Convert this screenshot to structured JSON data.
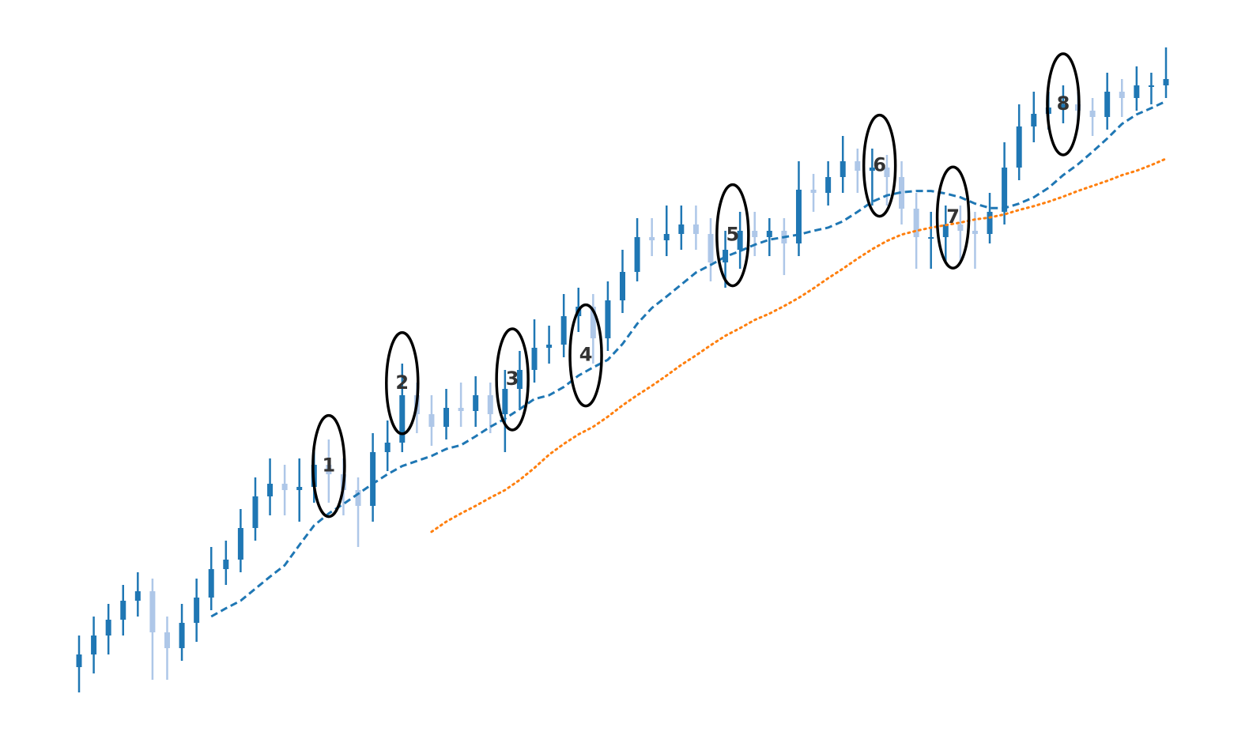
{
  "chart_data": {
    "type": "candlestick",
    "up_color": "#1f77b4",
    "down_color": "#aec7e8",
    "xlim": [
      0,
      74
    ],
    "ylim": [
      0,
      110
    ],
    "x": [
      0,
      1,
      2,
      3,
      4,
      5,
      6,
      7,
      8,
      9,
      10,
      11,
      12,
      13,
      14,
      15,
      16,
      17,
      18,
      19,
      20,
      21,
      22,
      23,
      24,
      25,
      26,
      27,
      28,
      29,
      30,
      31,
      32,
      33,
      34,
      35,
      36,
      37,
      38,
      39,
      40,
      41,
      42,
      43,
      44,
      45,
      46,
      47,
      48,
      49,
      50,
      51,
      52,
      53,
      54,
      55,
      56,
      57,
      58,
      59,
      60,
      61,
      62,
      63,
      64,
      65,
      66,
      67,
      68,
      69,
      70,
      71,
      72,
      73,
      74
    ],
    "open": [
      7,
      9,
      12,
      14.5,
      17.5,
      19,
      12.5,
      10,
      14,
      18,
      22.5,
      24,
      29,
      34,
      36,
      35,
      35.5,
      39,
      37.5,
      35,
      32.5,
      41,
      42.5,
      50,
      47,
      45,
      48,
      47.5,
      50,
      47,
      51,
      54,
      57.5,
      58,
      62.5,
      64,
      59,
      65,
      69.5,
      75,
      74.5,
      75.5,
      77,
      75.5,
      71,
      73,
      76,
      75,
      76,
      74,
      82.5,
      82,
      84.5,
      87,
      85.5,
      86,
      84.5,
      79.5,
      75,
      75,
      77,
      76,
      75.5,
      79,
      86,
      92.5,
      94.5,
      95.5,
      96,
      95,
      94,
      98,
      97,
      99,
      99
    ],
    "high": [
      12,
      15,
      17,
      20,
      22,
      21,
      15,
      17,
      21,
      26,
      27,
      32,
      37,
      40,
      39,
      40,
      42,
      43,
      40,
      37,
      44,
      46,
      55,
      52,
      50,
      51,
      52,
      53,
      52,
      54,
      57,
      62,
      61,
      66,
      67,
      66,
      68,
      73,
      78,
      78,
      80,
      80,
      80,
      78,
      76,
      79,
      79,
      78,
      78,
      87,
      85,
      87,
      91,
      89,
      89,
      88,
      87,
      82,
      79,
      80,
      80,
      79,
      82,
      90,
      96,
      98,
      98,
      99,
      98,
      97,
      101,
      100,
      102,
      101,
      105
    ],
    "low": [
      3,
      6,
      9,
      12,
      15,
      5,
      5,
      8,
      11,
      16,
      20,
      22,
      27,
      31,
      31,
      30,
      33,
      33,
      31,
      26,
      30,
      38,
      41,
      44,
      42,
      43,
      45,
      45,
      44,
      41,
      48,
      52,
      55,
      56,
      60,
      55,
      57,
      63,
      68,
      72,
      72,
      73,
      73,
      68,
      67,
      70,
      72,
      72,
      69,
      72,
      79,
      80,
      82,
      82,
      80,
      80,
      77,
      70,
      70,
      71,
      71,
      70,
      74,
      77,
      84,
      90,
      92,
      93,
      92,
      91,
      92,
      94,
      95,
      96,
      97
    ],
    "close": [
      9,
      12,
      14.5,
      17.5,
      19,
      12.5,
      10,
      14,
      18,
      22.5,
      24,
      29,
      34,
      36,
      35,
      35.5,
      39,
      37.5,
      35,
      32.5,
      41,
      42.5,
      50,
      47,
      45,
      48,
      47.5,
      50,
      47,
      51,
      54,
      57.5,
      58,
      62.5,
      64,
      59,
      65,
      69.5,
      75,
      74.5,
      75.5,
      77,
      75.5,
      71,
      73,
      76,
      75,
      76,
      74,
      82.5,
      82,
      84.5,
      87,
      85.5,
      86,
      84.5,
      79.5,
      75,
      75,
      77,
      76,
      75.5,
      79,
      86,
      92.5,
      94.5,
      95.5,
      96,
      95,
      94,
      98,
      97,
      99,
      99,
      100
    ],
    "lines": [
      {
        "color": "#1f77b4",
        "style": "dashed",
        "values": [
          null,
          null,
          null,
          null,
          null,
          null,
          null,
          null,
          null,
          15,
          16.3,
          17.5,
          19.4,
          21.3,
          23.1,
          26.3,
          29.4,
          31.3,
          32.8,
          34.4,
          36,
          37.5,
          38.8,
          39.6,
          40.4,
          41.5,
          42.1,
          43.5,
          45,
          46.3,
          47.8,
          49.4,
          50,
          51.3,
          53.1,
          54.4,
          55.6,
          58.1,
          61.3,
          63.8,
          65.6,
          67.5,
          69.4,
          70.6,
          71.9,
          72.8,
          73.8,
          74.6,
          75,
          75.4,
          76,
          76.5,
          77.5,
          79,
          80.6,
          81.6,
          82.1,
          82.3,
          82.3,
          81.9,
          81.3,
          80.3,
          79.6,
          79.6,
          80.3,
          81.3,
          82.8,
          84.8,
          86.5,
          88.5,
          90.6,
          92.9,
          94.4,
          95.4,
          96.5
        ]
      },
      {
        "color": "#ff7f0e",
        "style": "dotted",
        "values": [
          null,
          null,
          null,
          null,
          null,
          null,
          null,
          null,
          null,
          null,
          null,
          null,
          null,
          null,
          null,
          null,
          null,
          null,
          null,
          null,
          null,
          null,
          null,
          null,
          28.4,
          30,
          31.3,
          32.5,
          33.8,
          35,
          36.6,
          38.5,
          40.6,
          42.3,
          43.8,
          45,
          46.6,
          48.4,
          50,
          51.5,
          53.1,
          54.8,
          56.3,
          57.9,
          59.4,
          60.6,
          61.9,
          62.9,
          64.1,
          65.4,
          66.9,
          68.5,
          70,
          71.6,
          73.1,
          74.4,
          75.4,
          76,
          76.5,
          76.9,
          77.3,
          77.8,
          78.1,
          78.6,
          79.3,
          79.9,
          80.6,
          81.4,
          82.3,
          83.1,
          83.9,
          84.8,
          85.5,
          86.4,
          87.4
        ]
      }
    ],
    "annotations": [
      {
        "text": "1",
        "x": 17,
        "y": 38.8
      },
      {
        "text": "2",
        "x": 22,
        "y": 51.9
      },
      {
        "text": "3",
        "x": 29.5,
        "y": 52.5
      },
      {
        "text": "4",
        "x": 34.5,
        "y": 56.3
      },
      {
        "text": "5",
        "x": 44.5,
        "y": 75.3
      },
      {
        "text": "6",
        "x": 54.5,
        "y": 86.3
      },
      {
        "text": "7",
        "x": 59.5,
        "y": 78.1
      },
      {
        "text": "8",
        "x": 67,
        "y": 96
      }
    ]
  }
}
